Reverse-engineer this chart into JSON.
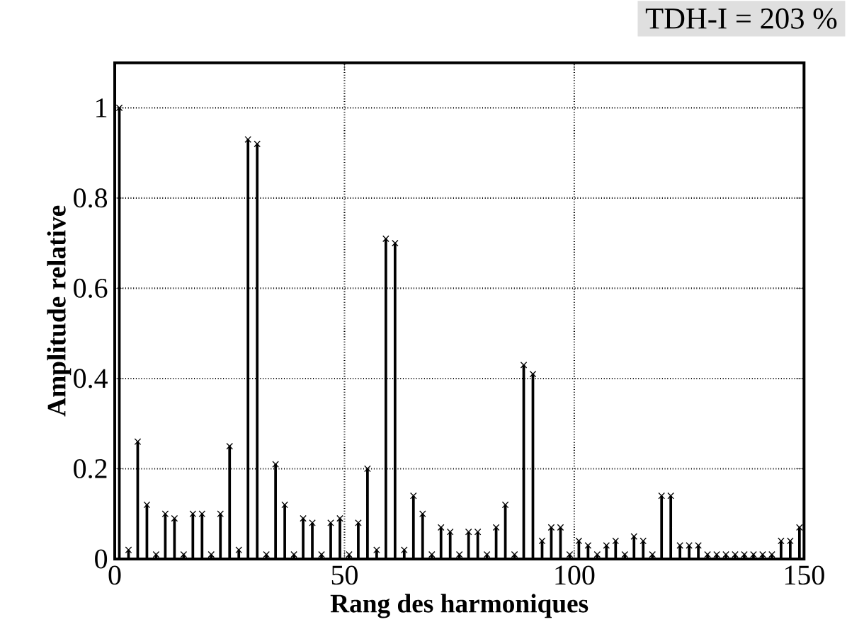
{
  "chart_data": {
    "type": "lollipop",
    "xlabel": "Rang des harmoniques",
    "ylabel": "Amplitude relative",
    "annotations": [
      "TDH-I = 203 %"
    ],
    "x": [
      1,
      3,
      5,
      7,
      9,
      11,
      13,
      15,
      17,
      19,
      21,
      23,
      25,
      27,
      29,
      31,
      33,
      35,
      37,
      39,
      41,
      43,
      45,
      47,
      49,
      51,
      53,
      55,
      57,
      59,
      61,
      63,
      65,
      67,
      69,
      71,
      73,
      75,
      77,
      79,
      81,
      83,
      85,
      87,
      89,
      91,
      93,
      95,
      97,
      99,
      101,
      103,
      105,
      107,
      109,
      111,
      113,
      115,
      117,
      119,
      121,
      123,
      125,
      127,
      129,
      131,
      133,
      135,
      137,
      139,
      141,
      143,
      145,
      147,
      149
    ],
    "values": [
      1.0,
      0.02,
      0.26,
      0.12,
      0.01,
      0.1,
      0.09,
      0.01,
      0.1,
      0.1,
      0.01,
      0.1,
      0.25,
      0.02,
      0.93,
      0.92,
      0.01,
      0.21,
      0.12,
      0.01,
      0.09,
      0.08,
      0.01,
      0.08,
      0.09,
      0.01,
      0.08,
      0.2,
      0.02,
      0.71,
      0.7,
      0.02,
      0.14,
      0.1,
      0.01,
      0.07,
      0.06,
      0.01,
      0.06,
      0.06,
      0.01,
      0.07,
      0.12,
      0.01,
      0.43,
      0.41,
      0.04,
      0.07,
      0.07,
      0.01,
      0.04,
      0.03,
      0.01,
      0.03,
      0.04,
      0.01,
      0.05,
      0.04,
      0.01,
      0.14,
      0.14,
      0.03,
      0.03,
      0.03,
      0.01,
      0.01,
      0.01,
      0.01,
      0.01,
      0.01,
      0.01,
      0.01,
      0.04,
      0.04,
      0.07
    ],
    "color": "#000000",
    "marker": "cross",
    "line_style": "solid",
    "grid": true,
    "xlim": [
      0,
      150
    ],
    "xticks": [
      0,
      50,
      100,
      150
    ],
    "ylim": [
      0,
      1.1
    ],
    "yticks": [
      0,
      0.2,
      0.4,
      0.6,
      0.8,
      1
    ]
  }
}
